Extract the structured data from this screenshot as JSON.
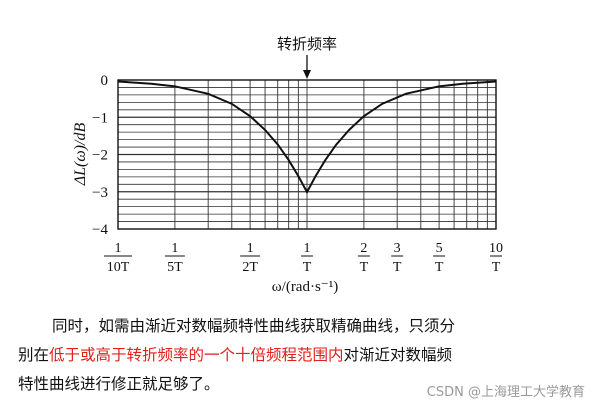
{
  "chart_data": {
    "type": "line",
    "annotation": "转折频率",
    "ylabel": "ΔL(ω)/dB",
    "xlabel": "ω/(rad·s⁻¹)",
    "ylim": [
      -4,
      0
    ],
    "yticks": [
      "0",
      "−1",
      "−2",
      "−3",
      "−4"
    ],
    "x_log_range_over_T": [
      0.1,
      10
    ],
    "xticks": [
      {
        "num": "1",
        "den": "10T",
        "value_over_T": 0.1
      },
      {
        "num": "1",
        "den": "5T",
        "value_over_T": 0.2
      },
      {
        "num": "1",
        "den": "2T",
        "value_over_T": 0.5
      },
      {
        "num": "1",
        "den": "T",
        "value_over_T": 1
      },
      {
        "num": "2",
        "den": "T",
        "value_over_T": 2
      },
      {
        "num": "3",
        "den": "T",
        "value_over_T": 3
      },
      {
        "num": "5",
        "den": "T",
        "value_over_T": 5
      },
      {
        "num": "10",
        "den": "T",
        "value_over_T": 10
      }
    ],
    "grid": true,
    "series": [
      {
        "x_over_T": [
          0.1,
          0.15,
          0.2,
          0.3,
          0.4,
          0.5,
          0.6,
          0.7,
          0.8,
          0.9,
          1,
          1.11,
          1.25,
          1.43,
          1.67,
          2,
          2.5,
          3.33,
          5,
          6.67,
          10
        ],
        "values": [
          -0.04,
          -0.1,
          -0.17,
          -0.37,
          -0.64,
          -0.97,
          -1.34,
          -1.73,
          -2.15,
          -2.58,
          -3.01,
          -2.58,
          -2.15,
          -1.73,
          -1.34,
          -0.97,
          -0.64,
          -0.37,
          -0.17,
          -0.1,
          -0.04
        ]
      }
    ]
  },
  "text": {
    "line1": "同时，如需由渐近对数幅频特性曲线获取精确曲线，只须分",
    "line2_start": "别在",
    "line2_red": "低于或高于转折频率的一个十倍频程范围内",
    "line2_end": "对渐近对数幅频",
    "line3": "特性曲线进行修正就足够了。"
  },
  "watermark": "CSDN @上海理工大学教育"
}
